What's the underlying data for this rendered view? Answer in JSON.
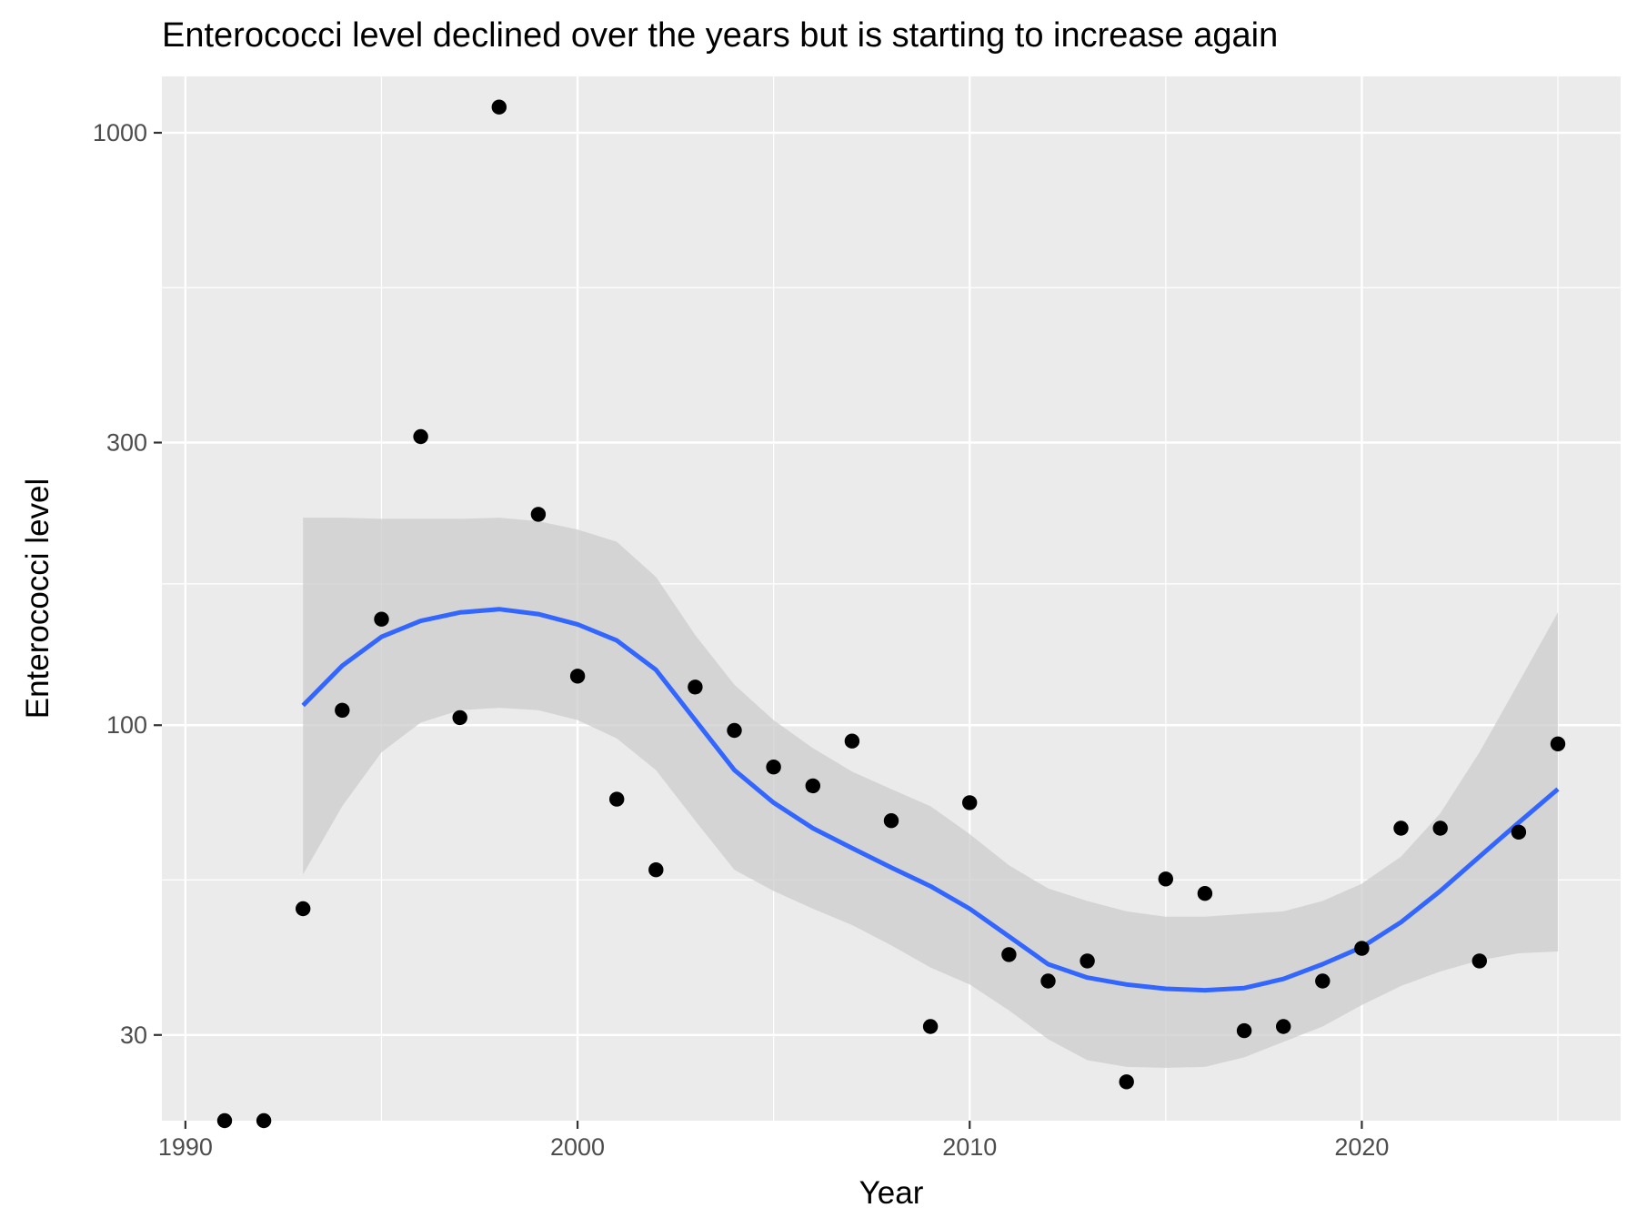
{
  "chart_data": {
    "type": "scatter",
    "title": "Enterococci level declined over the years but is starting to increase again",
    "xlabel": "Year",
    "ylabel": "Enterococci level",
    "x_scale": "linear",
    "y_scale": "log10",
    "xlim": [
      1989.4,
      2026.6
    ],
    "ylim": [
      21.5,
      1245
    ],
    "x_ticks": [
      1990,
      2000,
      2010,
      2020
    ],
    "x_tick_labels": [
      "1990",
      "2000",
      "2010",
      "2020"
    ],
    "x_minor_ticks": [
      1995,
      2005,
      2015,
      2025
    ],
    "y_ticks": [
      30,
      100,
      300,
      1000
    ],
    "y_tick_labels": [
      "30",
      "100",
      "300",
      "1000"
    ],
    "y_minor_ticks": [
      54.8,
      173.2,
      547.7
    ],
    "grid": true,
    "legend": "none",
    "colors": {
      "panel": "#ebebeb",
      "grid": "#ffffff",
      "points": "#000000",
      "smooth_line": "#3366ff",
      "confidence_band": "#cccccc"
    },
    "points": {
      "x": [
        1991,
        1992,
        1993,
        1994,
        1995,
        1996,
        1997,
        1998,
        1999,
        2000,
        2001,
        2002,
        2003,
        2004,
        2005,
        2006,
        2007,
        2008,
        2009,
        2010,
        2011,
        2012,
        2013,
        2014,
        2015,
        2016,
        2017,
        2018,
        2019,
        2020,
        2021,
        2022,
        2023,
        2024,
        2025
      ],
      "y": [
        21.5,
        21.5,
        49,
        106,
        151,
        307,
        103,
        1105,
        227,
        121,
        75,
        57,
        116,
        98,
        85,
        79,
        94,
        69,
        31,
        74,
        41,
        37,
        40,
        25,
        55,
        52,
        30.5,
        31,
        37,
        42,
        67,
        67,
        40,
        66,
        93
      ]
    },
    "smooth": {
      "method": "loess",
      "x": [
        1993,
        1994,
        1995,
        1996,
        1997,
        1998,
        1999,
        2000,
        2001,
        2002,
        2003,
        2004,
        2005,
        2006,
        2007,
        2008,
        2009,
        2010,
        2011,
        2012,
        2013,
        2014,
        2015,
        2016,
        2017,
        2018,
        2019,
        2020,
        2021,
        2022,
        2023,
        2024,
        2025
      ],
      "y": [
        108,
        126,
        141,
        150,
        155,
        157,
        154,
        148,
        139,
        124,
        102,
        84,
        74,
        67,
        62,
        57.5,
        53.5,
        49,
        44,
        39.5,
        37.5,
        36.5,
        35.9,
        35.7,
        36,
        37.3,
        39.5,
        42.2,
        46.5,
        52.5,
        60,
        68.5,
        78
      ],
      "ci_lower": [
        56,
        73,
        90,
        101,
        106,
        107,
        106,
        102,
        95,
        84,
        69,
        57,
        52.5,
        49,
        46,
        42.5,
        39,
        36.5,
        33,
        29.5,
        27.2,
        26.5,
        26.4,
        26.5,
        27.5,
        29.2,
        31,
        33.7,
        36.3,
        38.4,
        40.1,
        41.2,
        41.5
      ],
      "ci_upper": [
        224,
        224,
        223,
        223,
        223,
        224,
        221,
        214,
        204,
        178,
        142,
        117,
        102,
        91.5,
        83.5,
        78,
        73,
        65.5,
        58,
        53,
        50.5,
        48.5,
        47.5,
        47.5,
        48,
        48.5,
        50.5,
        54,
        60,
        71,
        90,
        118,
        155
      ]
    }
  }
}
